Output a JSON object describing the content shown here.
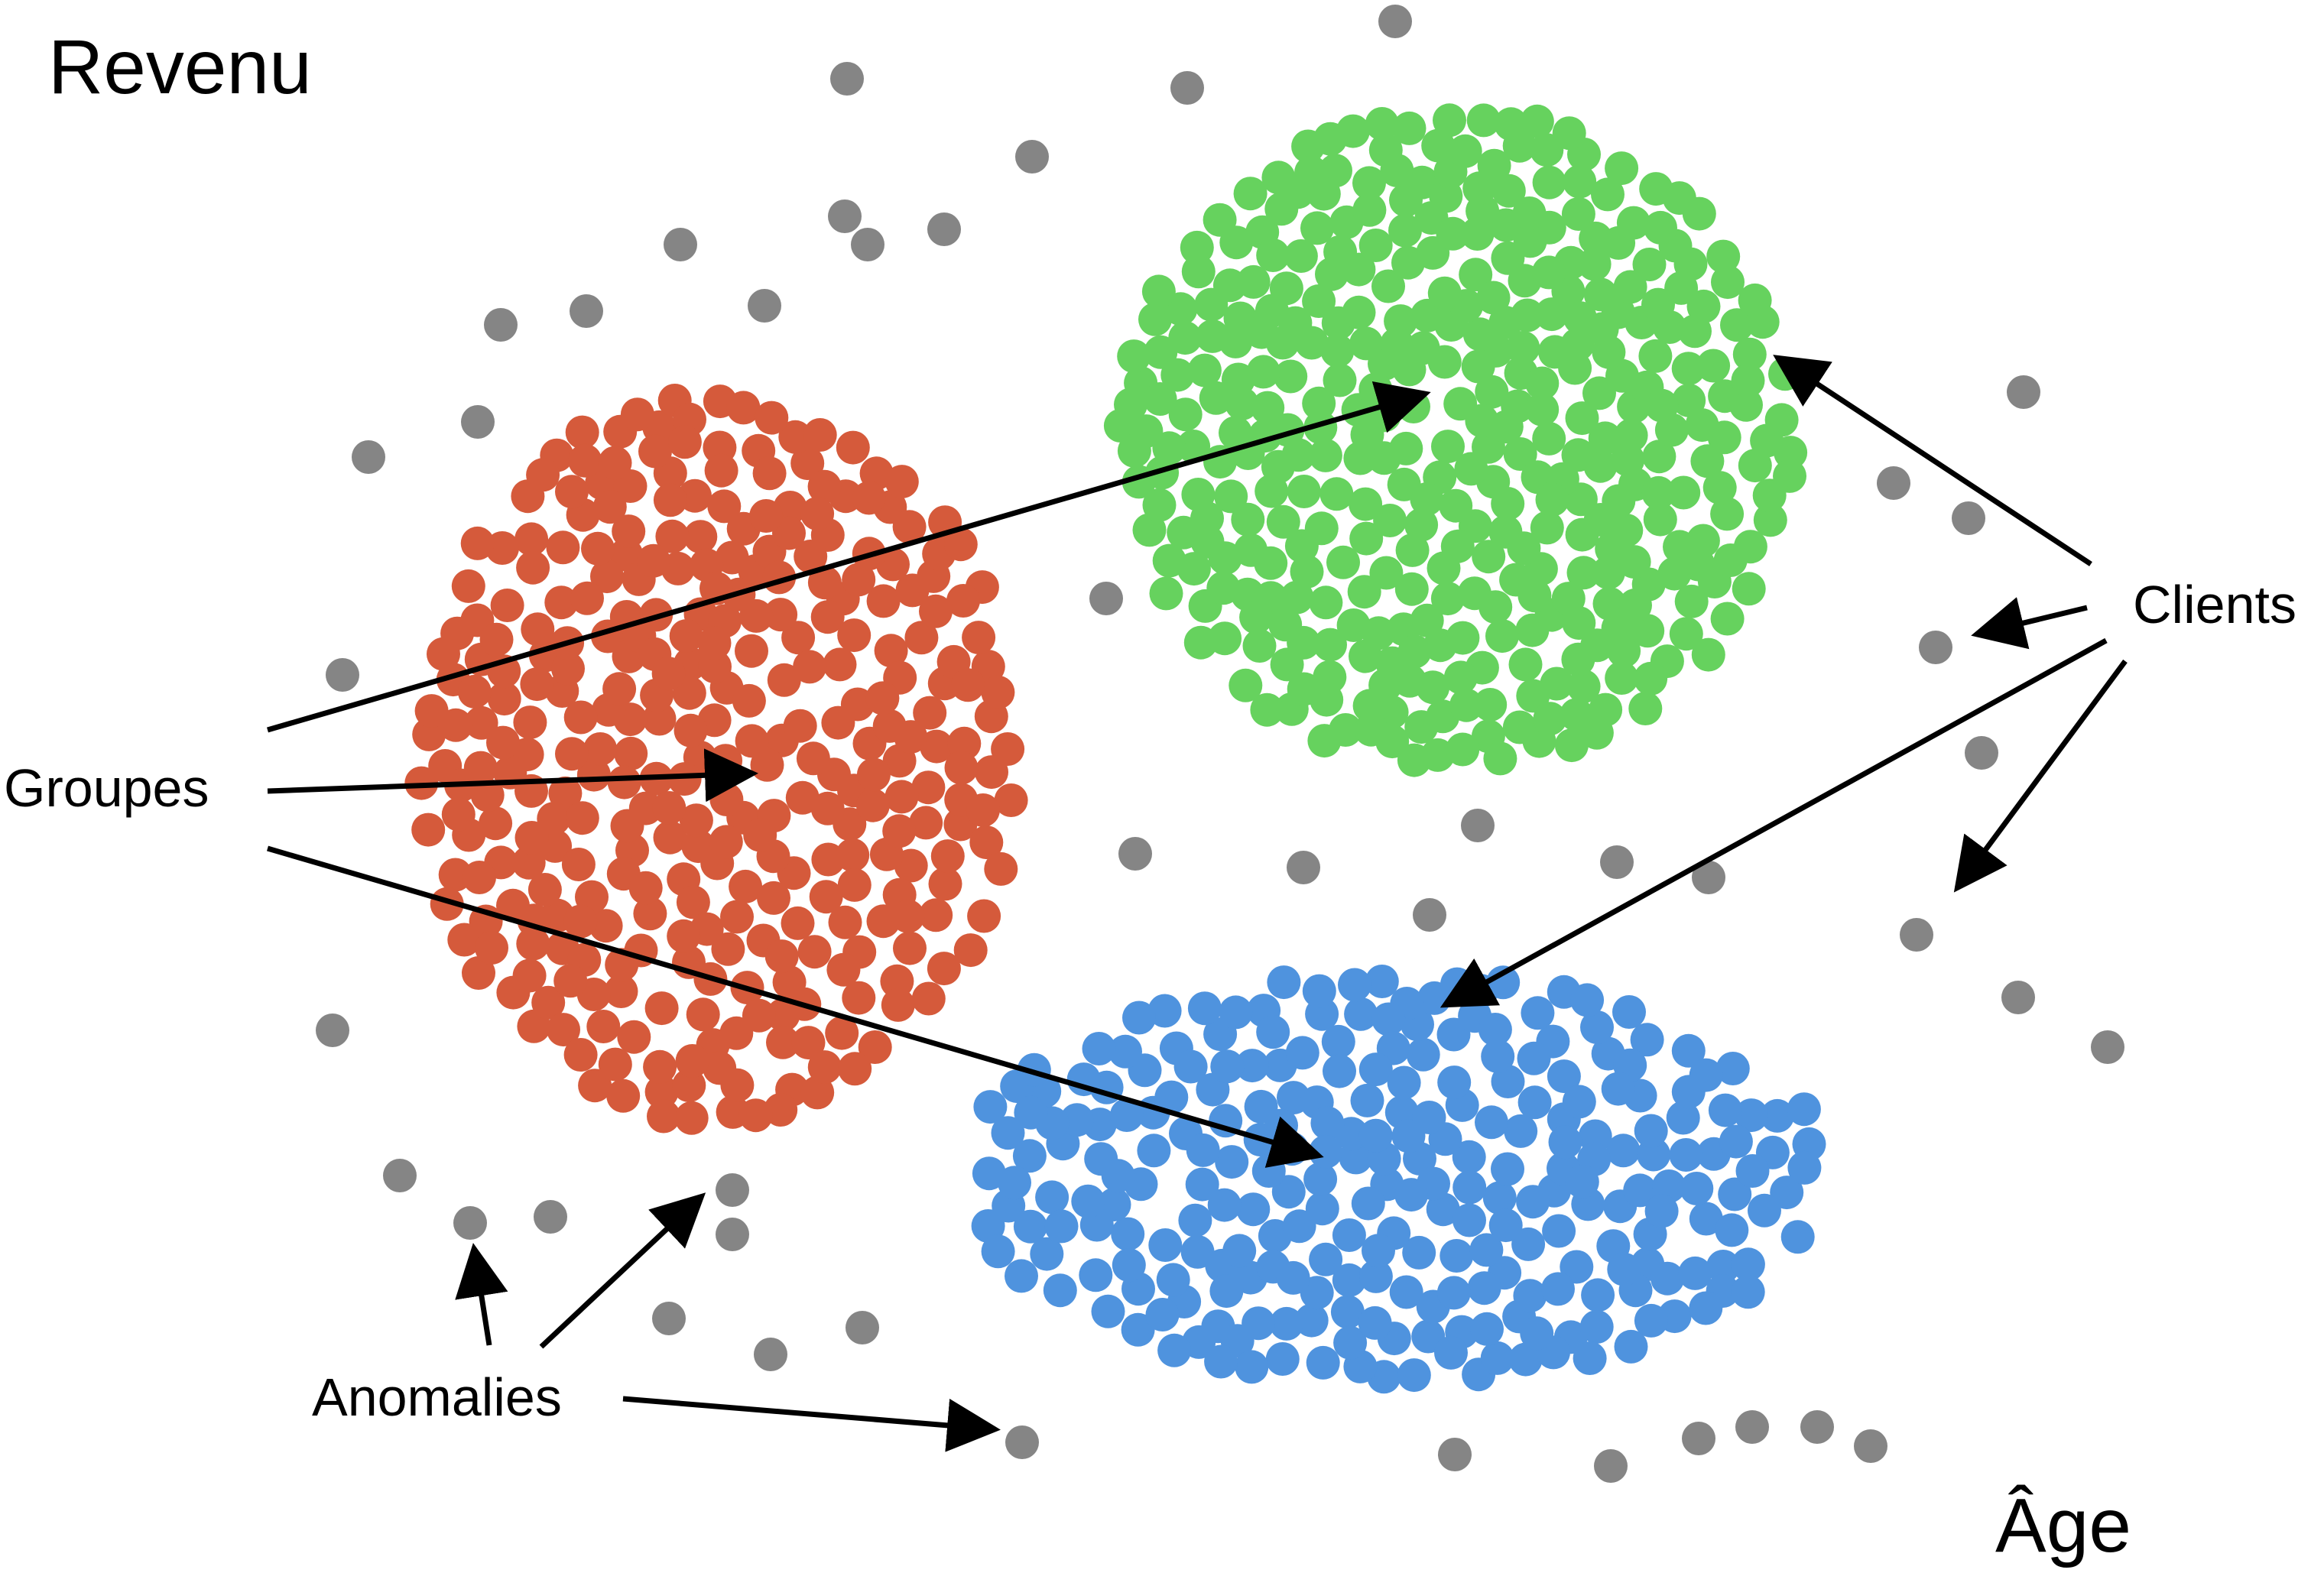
{
  "axis": {
    "y_label": "Revenu",
    "x_label": "Âge"
  },
  "annotations": {
    "groups": "Groupes",
    "clients": "Clients",
    "anomalies": "Anomalies"
  },
  "colors": {
    "cluster_red": "#d55a3b",
    "cluster_green": "#66d25e",
    "cluster_blue": "#4f93de",
    "anomaly_gray": "#858585",
    "arrow": "#000000"
  },
  "clusters": [
    {
      "name": "red",
      "shape": "round blob",
      "approx_points": 330
    },
    {
      "name": "green",
      "shape": "round blob",
      "approx_points": 380
    },
    {
      "name": "blue",
      "shape": "flattened blob",
      "approx_points": 260
    }
  ]
}
